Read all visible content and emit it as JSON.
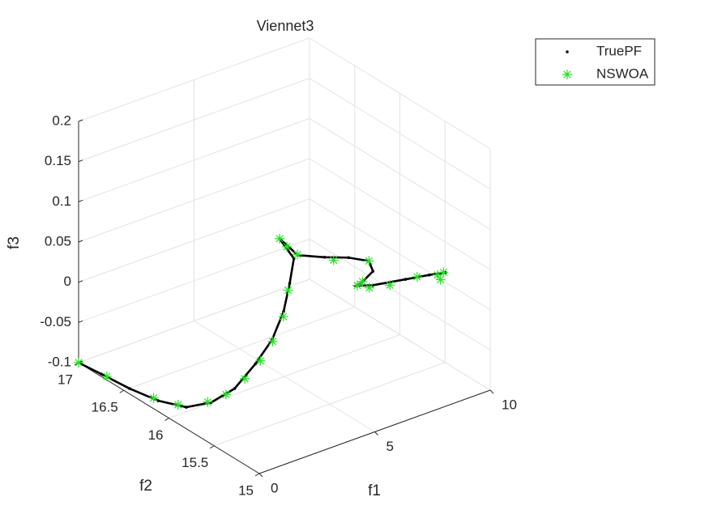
{
  "chart_data": {
    "type": "scatter3d",
    "title": "Viennet3",
    "xlabel": "f1",
    "ylabel": "f2",
    "zlabel": "f3",
    "xlim": [
      0,
      10
    ],
    "ylim": [
      15,
      17
    ],
    "zlim": [
      -0.1,
      0.2
    ],
    "xticks": [
      0,
      5,
      10
    ],
    "yticks": [
      15,
      15.5,
      16,
      16.5,
      17
    ],
    "zticks": [
      -0.1,
      -0.05,
      0,
      0.05,
      0.1,
      0.15,
      0.2
    ],
    "grid": true,
    "legend": "top-right",
    "series": [
      {
        "name": "TruePF",
        "color": "#000000",
        "marker": "point",
        "x": [
          0,
          0.04,
          0.06,
          0.12,
          0.24,
          0.76,
          1.32,
          1.9,
          2.35,
          2.5,
          2.49,
          2.28,
          1.7,
          2.18,
          3.53,
          4.88,
          6.0,
          6.37,
          6.71,
          7.07,
          7.88,
          8.33,
          8.45,
          8.64
        ],
        "y": [
          17,
          16.76,
          16.45,
          16.15,
          15.87,
          15.73,
          15.61,
          15.53,
          15.46,
          15.37,
          15.3,
          15.2,
          15.21,
          15.13,
          15.18,
          15.26,
          15.32,
          15.37,
          15.57,
          15.73,
          15.76,
          15.51,
          15.28,
          15.15
        ],
        "z": [
          -0.1,
          -0.098,
          -0.095,
          -0.09,
          -0.08,
          -0.07,
          -0.05,
          -0.02,
          0.01,
          0.05,
          0.09,
          0.13,
          0.16,
          0.14,
          0.12,
          0.1,
          0.08,
          0.06,
          0.03,
          0.01,
          0,
          0.02,
          0.04,
          0.05
        ]
      },
      {
        "name": "NSWOA",
        "color": "#22e322",
        "marker": "asterisk",
        "x": [
          0,
          0.05,
          0.12,
          0.2,
          0.7,
          1.1,
          1.6,
          2.0,
          2.3,
          2.45,
          2.5,
          1.7,
          1.9,
          2.2,
          4.0,
          6.0,
          6.7,
          7.1,
          7.5,
          8.0,
          8.4,
          8.5,
          8.55,
          8.6
        ],
        "y": [
          17,
          16.7,
          16.2,
          15.95,
          15.75,
          15.65,
          15.57,
          15.5,
          15.44,
          15.36,
          15.32,
          15.21,
          15.18,
          15.14,
          15.2,
          15.32,
          15.57,
          15.73,
          15.7,
          15.6,
          15.4,
          15.2,
          15.18,
          15.16
        ],
        "z": [
          -0.1,
          -0.097,
          -0.09,
          -0.082,
          -0.07,
          -0.058,
          -0.038,
          -0.015,
          0.01,
          0.045,
          0.08,
          0.16,
          0.15,
          0.14,
          0.11,
          0.08,
          0.03,
          0.01,
          0.005,
          0.01,
          0.03,
          0.045,
          0.04,
          0.05
        ]
      }
    ]
  }
}
